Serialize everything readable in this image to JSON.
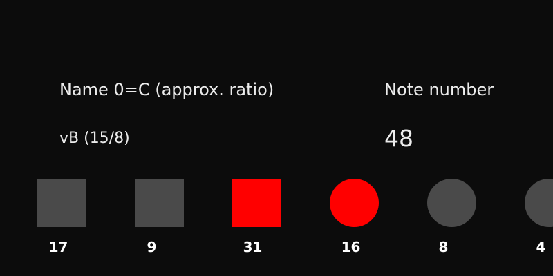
{
  "colors": {
    "background": "#0c0c0c",
    "inactive": "#4a4a4a",
    "active": "#ff0000"
  },
  "info": {
    "name_label": "Name 0=C (approx. ratio)",
    "name_value": "vB (15/8)",
    "note_label": "Note number",
    "note_value": "48"
  },
  "pads": [
    {
      "shape": "square",
      "state": "inactive",
      "number": "17"
    },
    {
      "shape": "square",
      "state": "inactive",
      "number": "9"
    },
    {
      "shape": "square",
      "state": "active",
      "number": "31"
    },
    {
      "shape": "circle",
      "state": "active",
      "number": "16"
    },
    {
      "shape": "circle",
      "state": "inactive",
      "number": "8"
    },
    {
      "shape": "circle",
      "state": "inactive",
      "number": "4"
    }
  ]
}
